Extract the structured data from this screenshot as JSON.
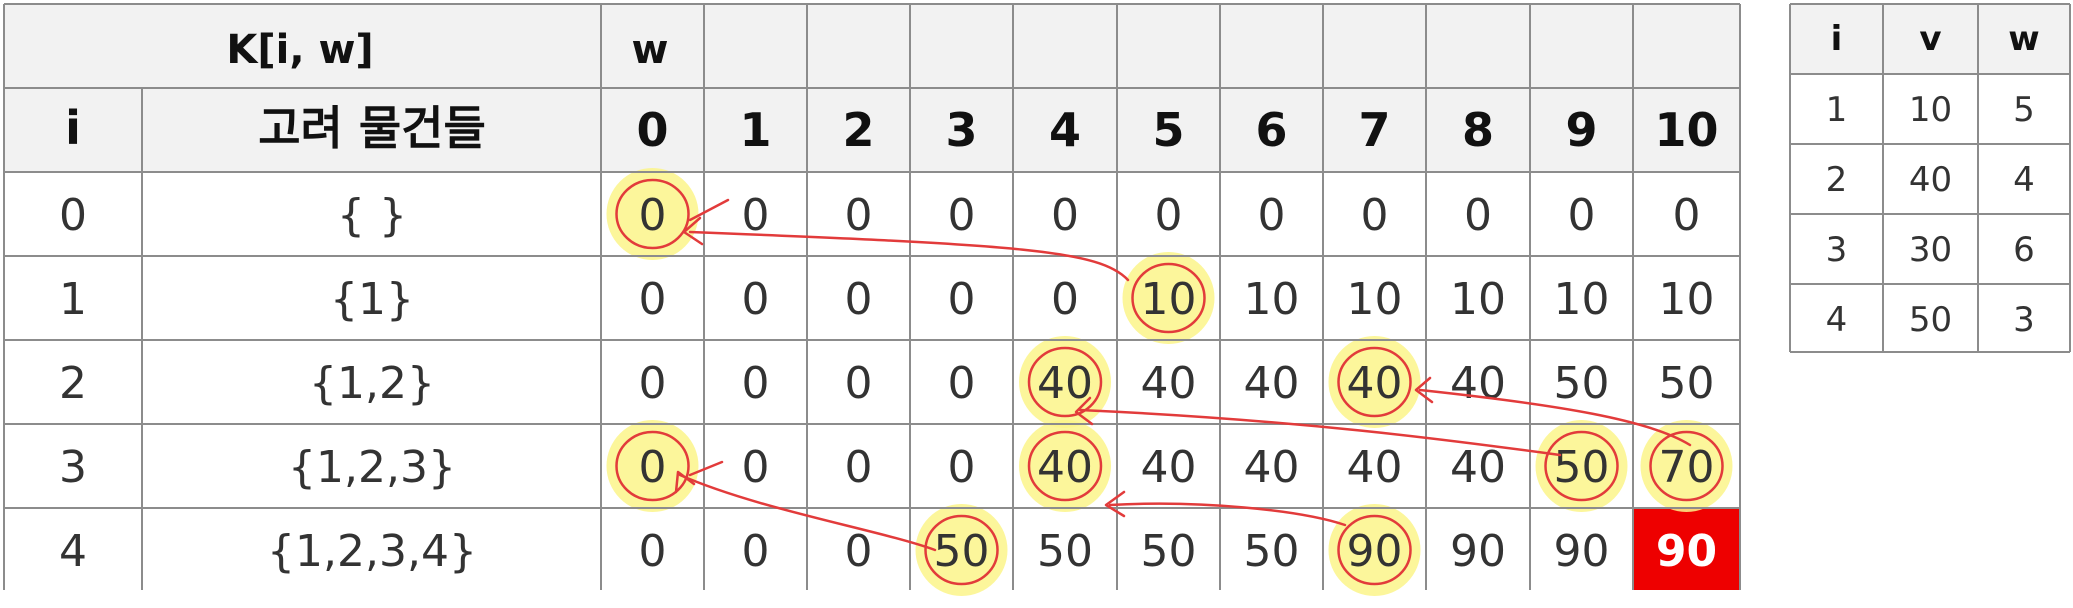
{
  "dp_table": {
    "title": "K[i, w]",
    "w_header": "w",
    "i_header": "i",
    "items_header": "고려 물건들",
    "w_values": [
      "0",
      "1",
      "2",
      "3",
      "4",
      "5",
      "6",
      "7",
      "8",
      "9",
      "10"
    ],
    "rows": [
      {
        "i": "0",
        "items": "{ }",
        "cells": [
          "0",
          "0",
          "0",
          "0",
          "0",
          "0",
          "0",
          "0",
          "0",
          "0",
          "0"
        ]
      },
      {
        "i": "1",
        "items": "{1}",
        "cells": [
          "0",
          "0",
          "0",
          "0",
          "0",
          "10",
          "10",
          "10",
          "10",
          "10",
          "10"
        ]
      },
      {
        "i": "2",
        "items": "{1,2}",
        "cells": [
          "0",
          "0",
          "0",
          "0",
          "40",
          "40",
          "40",
          "40",
          "40",
          "50",
          "50"
        ]
      },
      {
        "i": "3",
        "items": "{1,2,3}",
        "cells": [
          "0",
          "0",
          "0",
          "0",
          "40",
          "40",
          "40",
          "40",
          "40",
          "50",
          "70"
        ]
      },
      {
        "i": "4",
        "items": "{1,2,3,4}",
        "cells": [
          "0",
          "0",
          "0",
          "50",
          "50",
          "50",
          "50",
          "90",
          "90",
          "90",
          "90"
        ]
      }
    ],
    "highlights": [
      [
        0,
        0
      ],
      [
        1,
        5
      ],
      [
        2,
        4
      ],
      [
        2,
        7
      ],
      [
        3,
        0
      ],
      [
        3,
        4
      ],
      [
        3,
        9
      ],
      [
        3,
        10
      ],
      [
        4,
        3
      ],
      [
        4,
        7
      ]
    ],
    "answer_cell": [
      4,
      10
    ],
    "colors": {
      "highlight": "#fbf48a",
      "annotation": "#e23b3b",
      "answer_bg": "#ee0000",
      "answer_text": "#ffffff",
      "header_bg": "#f2f2f2"
    }
  },
  "item_table": {
    "headers": [
      "i",
      "v",
      "w"
    ],
    "rows": [
      [
        "1",
        "10",
        "5"
      ],
      [
        "2",
        "40",
        "4"
      ],
      [
        "3",
        "30",
        "6"
      ],
      [
        "4",
        "50",
        "3"
      ]
    ]
  }
}
